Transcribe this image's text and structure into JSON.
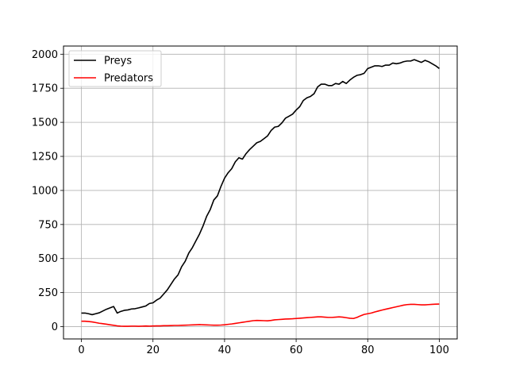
{
  "chart_data": {
    "type": "line",
    "title": "",
    "xlabel": "",
    "ylabel": "",
    "xlim": [
      -5,
      105
    ],
    "ylim": [
      -90,
      2060
    ],
    "xticks": [
      0,
      20,
      40,
      60,
      80,
      100
    ],
    "yticks": [
      0,
      250,
      500,
      750,
      1000,
      1250,
      1500,
      1750,
      2000
    ],
    "grid": true,
    "legend": "top-left",
    "series": [
      {
        "name": "Preys",
        "color": "#000000",
        "x": [
          0,
          1,
          2,
          3,
          4,
          5,
          6,
          7,
          8,
          9,
          10,
          11,
          12,
          13,
          14,
          15,
          16,
          17,
          18,
          19,
          20,
          21,
          22,
          23,
          24,
          25,
          26,
          27,
          28,
          29,
          30,
          31,
          32,
          33,
          34,
          35,
          36,
          37,
          38,
          39,
          40,
          41,
          42,
          43,
          44,
          45,
          46,
          47,
          48,
          49,
          50,
          51,
          52,
          53,
          54,
          55,
          56,
          57,
          58,
          59,
          60,
          61,
          62,
          63,
          64,
          65,
          66,
          67,
          68,
          69,
          70,
          71,
          72,
          73,
          74,
          75,
          76,
          77,
          78,
          79,
          80,
          81,
          82,
          83,
          84,
          85,
          86,
          87,
          88,
          89,
          90,
          91,
          92,
          93,
          94,
          95,
          96,
          97,
          98,
          99,
          100
        ],
        "y": [
          100,
          100,
          95,
          88,
          95,
          102,
          115,
          128,
          138,
          148,
          100,
          112,
          120,
          123,
          130,
          132,
          138,
          145,
          152,
          170,
          175,
          195,
          210,
          240,
          270,
          310,
          350,
          380,
          440,
          480,
          540,
          580,
          630,
          680,
          740,
          810,
          860,
          930,
          960,
          1030,
          1090,
          1130,
          1160,
          1210,
          1240,
          1230,
          1270,
          1300,
          1325,
          1350,
          1360,
          1380,
          1400,
          1440,
          1465,
          1470,
          1495,
          1530,
          1545,
          1560,
          1590,
          1615,
          1660,
          1680,
          1690,
          1710,
          1760,
          1780,
          1780,
          1770,
          1770,
          1785,
          1780,
          1800,
          1785,
          1810,
          1830,
          1845,
          1850,
          1860,
          1895,
          1905,
          1915,
          1915,
          1910,
          1920,
          1920,
          1935,
          1930,
          1935,
          1945,
          1950,
          1950,
          1960,
          1950,
          1940,
          1955,
          1945,
          1930,
          1915,
          1895
        ]
      },
      {
        "name": "Predators",
        "color": "#ff0000",
        "x": [
          0,
          1,
          2,
          3,
          4,
          5,
          6,
          7,
          8,
          9,
          10,
          11,
          12,
          13,
          14,
          15,
          16,
          17,
          18,
          19,
          20,
          21,
          22,
          23,
          24,
          25,
          26,
          27,
          28,
          29,
          30,
          31,
          32,
          33,
          34,
          35,
          36,
          37,
          38,
          39,
          40,
          41,
          42,
          43,
          44,
          45,
          46,
          47,
          48,
          49,
          50,
          51,
          52,
          53,
          54,
          55,
          56,
          57,
          58,
          59,
          60,
          61,
          62,
          63,
          64,
          65,
          66,
          67,
          68,
          69,
          70,
          71,
          72,
          73,
          74,
          75,
          76,
          77,
          78,
          79,
          80,
          81,
          82,
          83,
          84,
          85,
          86,
          87,
          88,
          89,
          90,
          91,
          92,
          93,
          94,
          95,
          96,
          97,
          98,
          99,
          100
        ],
        "y": [
          40,
          40,
          38,
          35,
          30,
          25,
          22,
          18,
          14,
          10,
          6,
          4,
          3,
          3,
          4,
          4,
          3,
          4,
          5,
          4,
          5,
          6,
          6,
          7,
          7,
          8,
          9,
          9,
          10,
          11,
          12,
          13,
          14,
          15,
          14,
          13,
          12,
          11,
          11,
          12,
          14,
          17,
          20,
          24,
          28,
          32,
          36,
          40,
          44,
          46,
          45,
          44,
          43,
          46,
          50,
          52,
          54,
          56,
          57,
          58,
          60,
          62,
          64,
          66,
          68,
          70,
          72,
          72,
          70,
          68,
          68,
          70,
          72,
          70,
          66,
          62,
          60,
          68,
          80,
          90,
          95,
          100,
          108,
          115,
          122,
          128,
          134,
          140,
          146,
          152,
          158,
          162,
          164,
          164,
          162,
          160,
          160,
          162,
          164,
          165,
          166
        ]
      }
    ]
  }
}
